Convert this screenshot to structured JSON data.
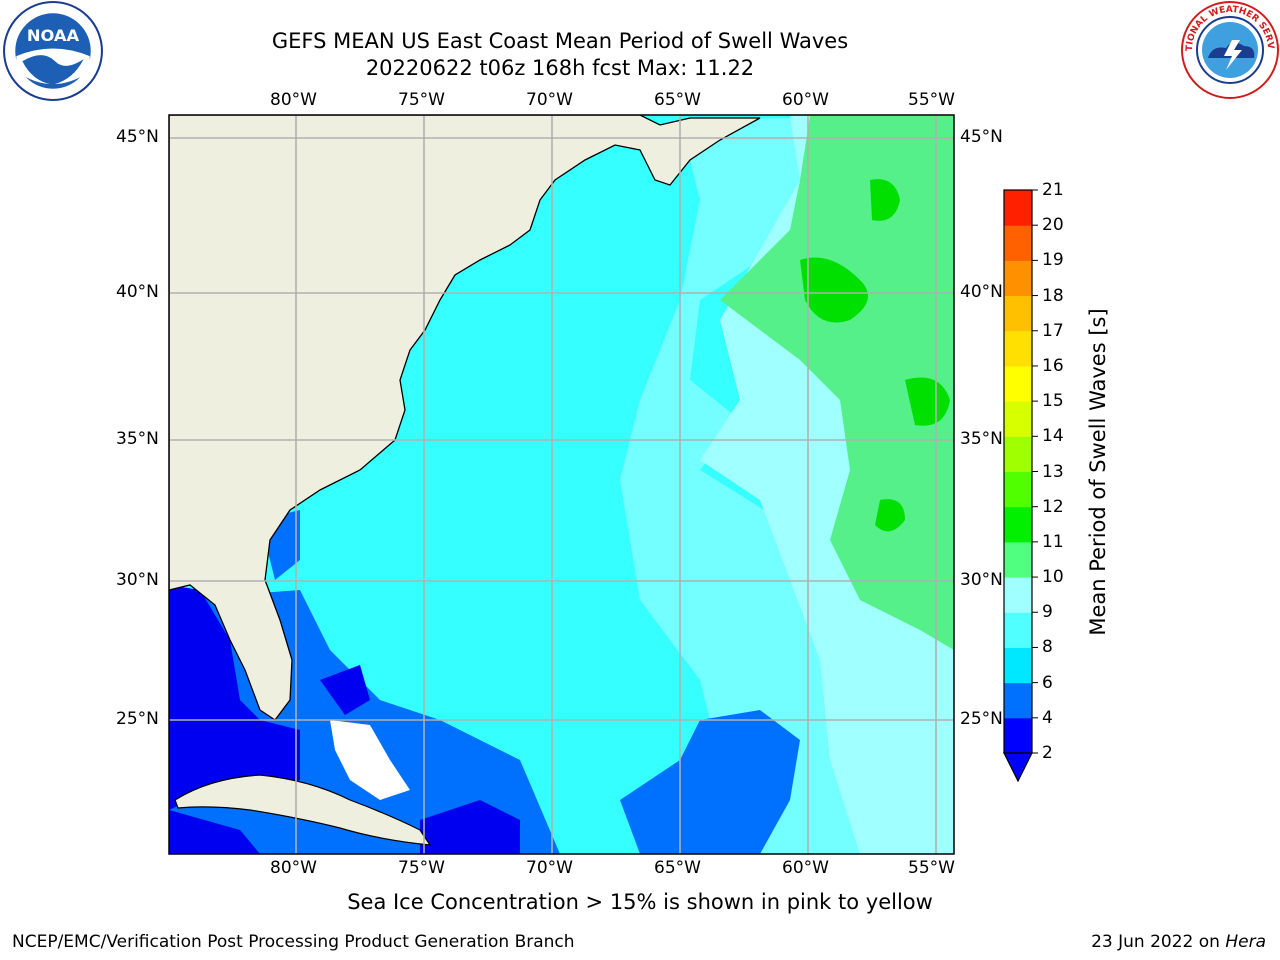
{
  "header": {
    "title_line1": "GEFS MEAN US East Coast Mean Period of Swell Waves",
    "title_line2": "20220622 t06z 168h fcst   Max: 11.22"
  },
  "logos": {
    "left": "noaa-logo",
    "right": "national-weather-service-logo"
  },
  "map": {
    "lon_labels": [
      "80°W",
      "75°W",
      "70°W",
      "65°W",
      "60°W",
      "55°W"
    ],
    "lat_labels": [
      "45°N",
      "40°N",
      "35°N",
      "30°N",
      "25°N"
    ],
    "colors": {
      "land": "#efefdf",
      "ocean_dominant": "#36ffff",
      "coastline": "#000000",
      "grid": "#b0b0b0"
    }
  },
  "colorbar": {
    "title": "Mean Period of Swell Waves [s]",
    "levels": [
      "2",
      "4",
      "6",
      "8",
      "9",
      "10",
      "11",
      "12",
      "13",
      "14",
      "15",
      "16",
      "17",
      "18",
      "19",
      "20",
      "21"
    ],
    "colors": [
      "#0000ff",
      "#0070ff",
      "#00e8ff",
      "#50ffff",
      "#a0ffff",
      "#50ff80",
      "#00f000",
      "#50ff00",
      "#a0ff00",
      "#d8ff00",
      "#ffff00",
      "#ffe000",
      "#ffc000",
      "#ff9000",
      "#ff6000",
      "#ff2000"
    ],
    "extend_color": "#0000ff"
  },
  "note": "Sea Ice Concentration > 15% is shown in pink to yellow",
  "footer": {
    "left": "NCEP/EMC/Verification Post Processing Product Generation Branch",
    "right_date": "23 Jun 2022 on ",
    "right_machine": "Hera"
  }
}
